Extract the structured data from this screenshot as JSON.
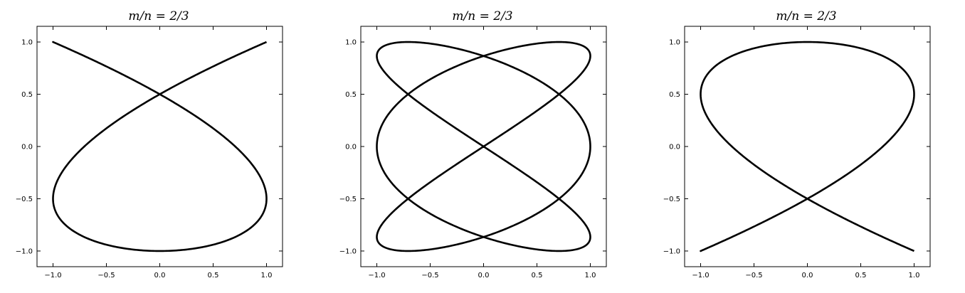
{
  "chart_data": [
    {
      "type": "line",
      "title": "m/n = 2/3",
      "curve": "Lissajous x = cos(3t), y = cos(2t + phase)",
      "phase_deg": 0,
      "xlim": [
        -1.15,
        1.15
      ],
      "ylim": [
        -1.15,
        1.15
      ],
      "xticks": [
        -1.0,
        -0.5,
        0.0,
        0.5,
        1.0
      ],
      "yticks": [
        -1.0,
        -0.5,
        0.0,
        0.5,
        1.0
      ],
      "xtick_labels": [
        "−1.0",
        "−0.5",
        "0.0",
        "0.5",
        "1.0"
      ],
      "ytick_labels": [
        "−1.0",
        "−0.5",
        "0.0",
        "0.5",
        "1.0"
      ],
      "grid": false,
      "color": "#000000"
    },
    {
      "type": "line",
      "title": "m/n = 2/3",
      "curve": "Lissajous x = cos(3t), y = cos(2t + phase)",
      "phase_deg": 90,
      "xlim": [
        -1.15,
        1.15
      ],
      "ylim": [
        -1.15,
        1.15
      ],
      "xticks": [
        -1.0,
        -0.5,
        0.0,
        0.5,
        1.0
      ],
      "yticks": [
        -1.0,
        -0.5,
        0.0,
        0.5,
        1.0
      ],
      "xtick_labels": [
        "−1.0",
        "−0.5",
        "0.0",
        "0.5",
        "1.0"
      ],
      "ytick_labels": [
        "−1.0",
        "−0.5",
        "0.0",
        "0.5",
        "1.0"
      ],
      "grid": false,
      "color": "#000000"
    },
    {
      "type": "line",
      "title": "m/n = 2/3",
      "curve": "Lissajous x = cos(3t), y = cos(2t + phase)",
      "phase_deg": 180,
      "xlim": [
        -1.15,
        1.15
      ],
      "ylim": [
        -1.15,
        1.15
      ],
      "xticks": [
        -1.0,
        -0.5,
        0.0,
        0.5,
        1.0
      ],
      "yticks": [
        -1.0,
        -0.5,
        0.0,
        0.5,
        1.0
      ],
      "xtick_labels": [
        "−1.0",
        "−0.5",
        "0.0",
        "0.5",
        "1.0"
      ],
      "ytick_labels": [
        "−1.0",
        "−0.5",
        "0.0",
        "0.5",
        "1.0"
      ],
      "grid": false,
      "color": "#000000"
    }
  ]
}
